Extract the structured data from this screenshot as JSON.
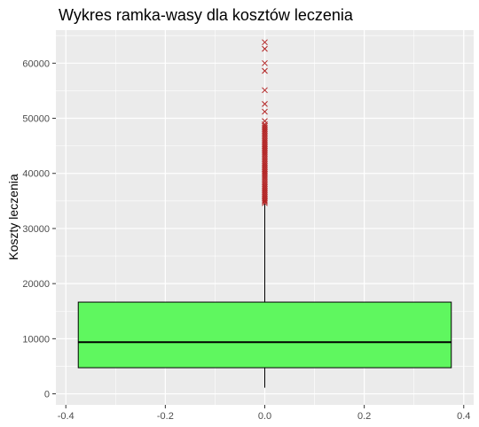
{
  "chart_data": {
    "type": "boxplot",
    "title": "Wykres ramka-wasy dla kosztów leczenia",
    "xlabel": "",
    "ylabel": "Koszty leczenia",
    "xlim": [
      -0.42,
      0.42
    ],
    "ylim": [
      -2000,
      66000
    ],
    "x_ticks": [
      -0.4,
      -0.2,
      0.0,
      0.2,
      0.4
    ],
    "x_tick_labels": [
      "-0.4",
      "-0.2",
      "0.0",
      "0.2",
      "0.4"
    ],
    "y_ticks": [
      0,
      10000,
      20000,
      30000,
      40000,
      50000,
      60000
    ],
    "y_tick_labels": [
      "0",
      "10000",
      "20000",
      "30000",
      "40000",
      "50000",
      "60000"
    ],
    "grid": true,
    "box": {
      "x_left": -0.375,
      "x_right": 0.375,
      "min": 1122,
      "q1": 4740,
      "median": 9382,
      "q3": 16640,
      "whisker_high": 34472
    },
    "outliers": [
      34600,
      34900,
      35100,
      35400,
      35700,
      36000,
      36300,
      36600,
      36900,
      37200,
      37500,
      37800,
      38100,
      38400,
      38700,
      39000,
      39300,
      39600,
      39900,
      40200,
      40500,
      40800,
      41100,
      41400,
      41700,
      42000,
      42300,
      42600,
      42900,
      43200,
      43500,
      43800,
      44100,
      44400,
      44700,
      45000,
      45300,
      45600,
      45900,
      46200,
      46500,
      46800,
      47100,
      47400,
      47700,
      48000,
      48300,
      48600,
      48900,
      49500,
      51200,
      52600,
      55100,
      58600,
      60000,
      62600,
      63800
    ],
    "colors": {
      "panel": "#ebebeb",
      "grid": "#ffffff",
      "box_fill": "#5ff75f",
      "outline": "#000000",
      "outlier": "#b22222"
    }
  }
}
